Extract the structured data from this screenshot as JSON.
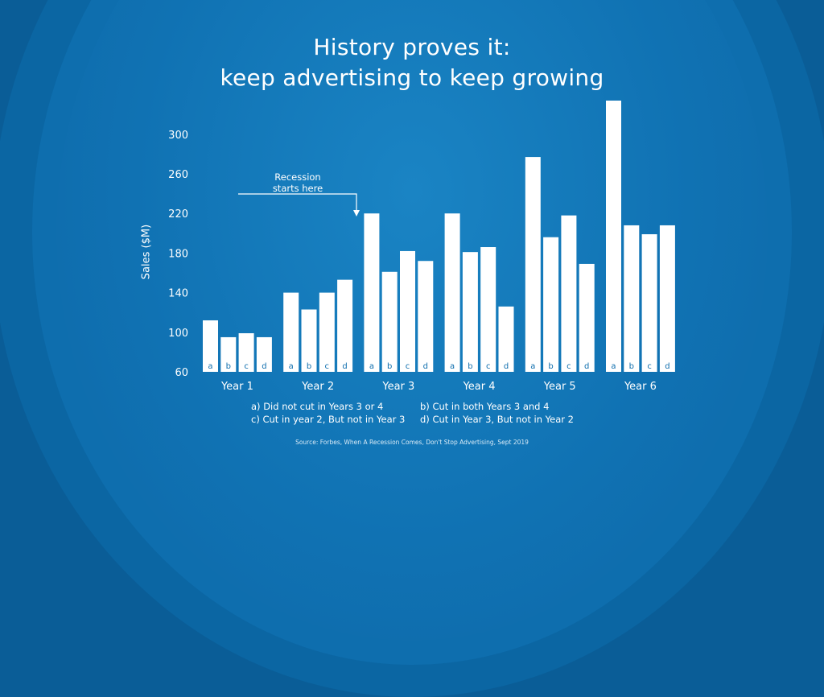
{
  "title_line1": "History proves it:",
  "title_line2": "keep advertising to keep growing",
  "annotation": [
    "Recession",
    "starts here"
  ],
  "legend": {
    "a": "a) Did not cut in Years 3 or 4",
    "b": "b) Cut in both Years 3 and 4",
    "c": "c) Cut in year 2, But not in Year 3",
    "d": "d) Cut in Year 3, But not in Year 2"
  },
  "source": "Source: Forbes, When A Recession Comes, Don't Stop Advertising, Sept 2019",
  "colors": {
    "background": "#0e6eae",
    "bars": "#ffffff",
    "bar_label": "#0e6eae"
  },
  "chart_data": {
    "type": "bar",
    "title": "History proves it: keep advertising to keep growing",
    "ylabel": "Sales ($M)",
    "xlabel": "",
    "ylim": [
      60,
      330
    ],
    "yticks": [
      60,
      100,
      140,
      180,
      220,
      260,
      300
    ],
    "categories": [
      "Year 1",
      "Year 2",
      "Year 3",
      "Year 4",
      "Year 5",
      "Year 6"
    ],
    "bar_labels": [
      "a",
      "b",
      "c",
      "d"
    ],
    "series": [
      {
        "name": "a",
        "values": [
          112,
          140,
          220,
          220,
          277,
          334
        ]
      },
      {
        "name": "b",
        "values": [
          95,
          123,
          161,
          181,
          196,
          208
        ]
      },
      {
        "name": "c",
        "values": [
          99,
          140,
          182,
          186,
          218,
          199
        ]
      },
      {
        "name": "d",
        "values": [
          95,
          153,
          172,
          126,
          169,
          208
        ]
      }
    ],
    "grid": false,
    "legend": "bottom"
  }
}
